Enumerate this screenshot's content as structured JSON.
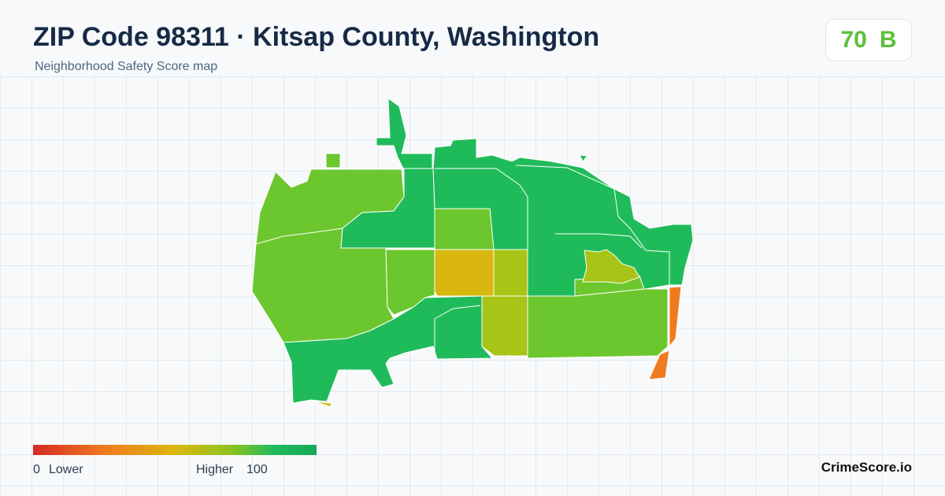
{
  "header": {
    "title": "ZIP Code 98311 · Kitsap County, Washington",
    "subtitle": "Neighborhood Safety Score map",
    "score": 70,
    "grade": "B"
  },
  "legend": {
    "min": 0,
    "min_label": "Lower",
    "max_label": "Higher",
    "max": 100
  },
  "footer": {
    "brand": "CrimeScore.io"
  }
}
